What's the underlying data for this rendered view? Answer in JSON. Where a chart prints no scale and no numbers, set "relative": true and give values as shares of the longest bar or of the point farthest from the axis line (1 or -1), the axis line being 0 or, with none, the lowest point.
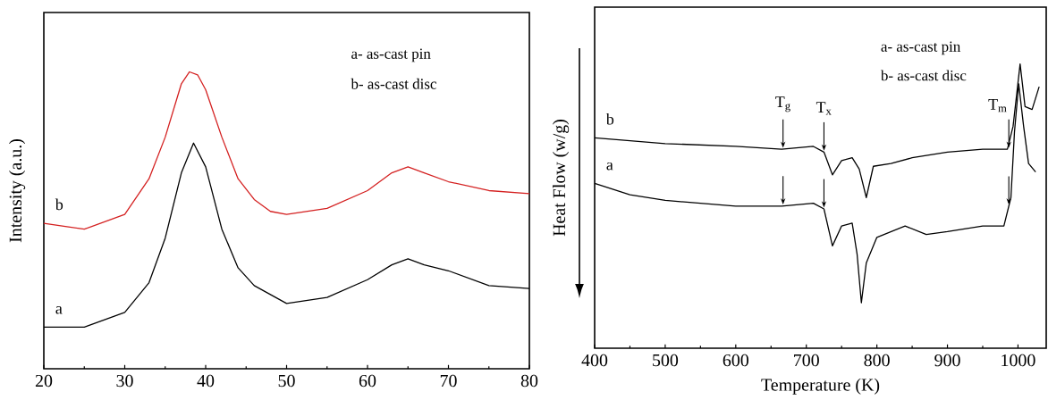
{
  "chart_data": [
    {
      "type": "line",
      "relative": true,
      "ylabel": "Intensity (a.u.)",
      "xlim": [
        20,
        80
      ],
      "xticks": [
        20,
        30,
        40,
        50,
        60,
        70,
        80
      ],
      "x": [
        20,
        25,
        30,
        33,
        35,
        37,
        38,
        39,
        40,
        42,
        44,
        46,
        48,
        50,
        55,
        60,
        63,
        65,
        67,
        70,
        75,
        80
      ],
      "series": [
        {
          "name": "b",
          "color": "#d42020",
          "values": [
            0.49,
            0.47,
            0.52,
            0.64,
            0.78,
            0.96,
            1.0,
            0.99,
            0.94,
            0.78,
            0.64,
            0.57,
            0.53,
            0.52,
            0.54,
            0.6,
            0.66,
            0.68,
            0.66,
            0.63,
            0.6,
            0.59
          ]
        },
        {
          "name": "a",
          "color": "#000000",
          "x": [
            20,
            25,
            30,
            33,
            35,
            37,
            38.5,
            40,
            42,
            44,
            46,
            50,
            55,
            60,
            63,
            65,
            67,
            70,
            75,
            80
          ],
          "values": [
            0.14,
            0.14,
            0.19,
            0.29,
            0.44,
            0.66,
            0.76,
            0.68,
            0.47,
            0.34,
            0.28,
            0.22,
            0.24,
            0.3,
            0.35,
            0.37,
            0.35,
            0.33,
            0.28,
            0.27
          ]
        }
      ],
      "annotations": [
        "a- as-cast pin",
        "b- as-cast disc"
      ]
    },
    {
      "type": "line",
      "relative": true,
      "xlabel": "Temperature (K)",
      "ylabel": "Heat Flow (w/g)",
      "xlim": [
        400,
        1040
      ],
      "xticks": [
        400,
        500,
        600,
        700,
        800,
        900,
        1000
      ],
      "series": [
        {
          "name": "b",
          "color": "#000000",
          "x": [
            400,
            500,
            600,
            665,
            710,
            725,
            737,
            750,
            765,
            775,
            785,
            795,
            820,
            850,
            900,
            950,
            985,
            993,
            1003,
            1010,
            1020,
            1030
          ],
          "values": [
            0.74,
            0.72,
            0.71,
            0.7,
            0.71,
            0.69,
            0.61,
            0.66,
            0.67,
            0.63,
            0.53,
            0.64,
            0.65,
            0.67,
            0.69,
            0.7,
            0.7,
            0.78,
            1.0,
            0.85,
            0.84,
            0.92
          ]
        },
        {
          "name": "a",
          "color": "#000000",
          "x": [
            400,
            450,
            500,
            600,
            665,
            710,
            725,
            737,
            750,
            765,
            772,
            778,
            785,
            800,
            840,
            870,
            900,
            950,
            980,
            990,
            995,
            1001,
            1008,
            1015,
            1025
          ],
          "values": [
            0.58,
            0.54,
            0.52,
            0.5,
            0.5,
            0.51,
            0.49,
            0.36,
            0.43,
            0.44,
            0.33,
            0.16,
            0.3,
            0.39,
            0.43,
            0.4,
            0.41,
            0.43,
            0.43,
            0.53,
            0.76,
            0.93,
            0.78,
            0.65,
            0.62
          ]
        }
      ],
      "annotations": [
        "a- as-cast pin",
        "b- as-cast disc",
        {
          "text": "T$_{g}$",
          "x": 667,
          "y": 0.7
        },
        {
          "text": "T$_{x}$",
          "x": 725,
          "y": 0.69
        },
        {
          "text": "T$_{m}$",
          "x": 987,
          "y": 0.7
        }
      ]
    }
  ]
}
